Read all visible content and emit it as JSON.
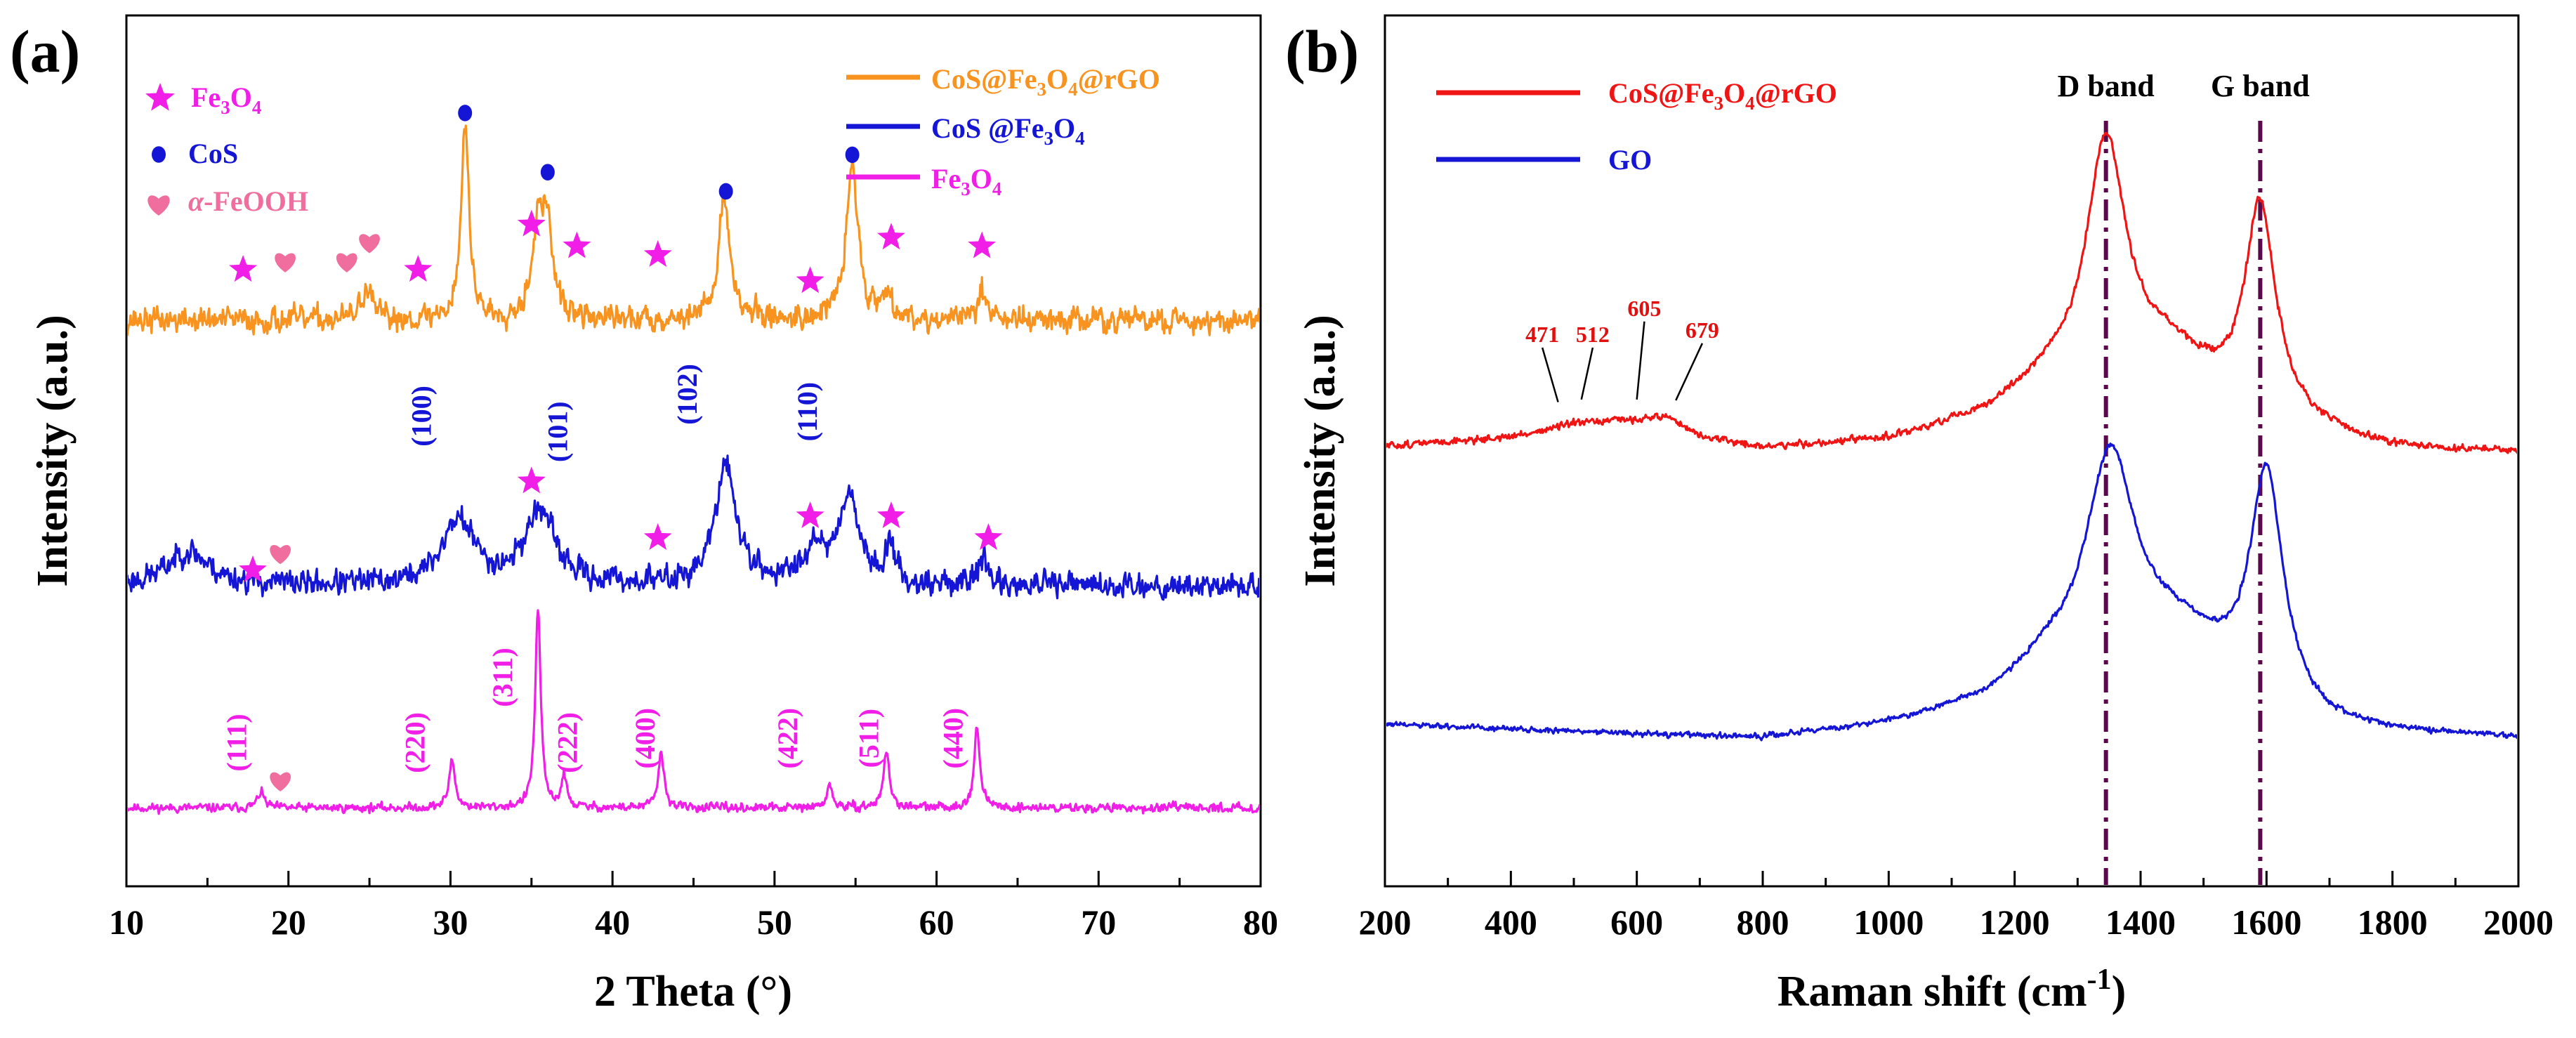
{
  "chart_data": [
    {
      "panel_label": "(a)",
      "type": "line",
      "xlabel": "2 Theta (°)",
      "ylabel": "Intensity (a.u.)",
      "xlim": [
        10,
        80
      ],
      "ylim": [
        0,
        100
      ],
      "xticks": [
        10,
        20,
        30,
        40,
        50,
        60,
        70,
        80
      ],
      "legend": [
        {
          "text": "CoS@Fe3O4@rGO",
          "color": "#F7931E"
        },
        {
          "text": "CoS @Fe3O4",
          "color": "#1515D6"
        },
        {
          "text": "Fe3O4",
          "color": "#F01EE6"
        }
      ],
      "marker_legend": [
        {
          "marker": "star",
          "color": "#F01EE6",
          "text": "Fe3O4"
        },
        {
          "marker": "dot",
          "color": "#1515D6",
          "text": "CoS"
        },
        {
          "marker": "heart",
          "color": "#F06E9E",
          "text": "α-FeOOH"
        }
      ],
      "series": [
        {
          "name": "Fe3O4",
          "color": "#F01EE6",
          "baseline": 9.0,
          "noise": 0.55,
          "seed": 11,
          "peaks": [
            {
              "x": 18.3,
              "h": 1.8,
              "w": 0.25
            },
            {
              "x": 30.1,
              "h": 5.5,
              "w": 0.22
            },
            {
              "x": 35.4,
              "h": 23.0,
              "w": 0.2
            },
            {
              "x": 37.0,
              "h": 3.6,
              "w": 0.2
            },
            {
              "x": 43.0,
              "h": 6.2,
              "w": 0.22
            },
            {
              "x": 53.4,
              "h": 2.5,
              "w": 0.22
            },
            {
              "x": 56.9,
              "h": 6.5,
              "w": 0.22
            },
            {
              "x": 62.5,
              "h": 9.0,
              "w": 0.22
            }
          ]
        },
        {
          "name": "CoS @Fe3O4",
          "color": "#1515D6",
          "baseline": 34.5,
          "noise": 1.6,
          "seed": 23,
          "peaks": [
            {
              "x": 13.8,
              "h": 4.0,
              "w": 1.5
            },
            {
              "x": 30.5,
              "h": 7.5,
              "w": 1.2
            },
            {
              "x": 35.5,
              "h": 8.5,
              "w": 1.1
            },
            {
              "x": 47.0,
              "h": 13.5,
              "w": 0.8
            },
            {
              "x": 54.6,
              "h": 10.5,
              "w": 0.7
            },
            {
              "x": 57.1,
              "h": 5.0,
              "w": 0.3
            },
            {
              "x": 62.8,
              "h": 3.5,
              "w": 0.3
            },
            {
              "x": 52.5,
              "h": 4.5,
              "w": 0.8
            }
          ]
        },
        {
          "name": "CoS@Fe3O4@rGO",
          "color": "#F7931E",
          "baseline": 65.0,
          "noise": 1.6,
          "seed": 37,
          "peaks": [
            {
              "x": 30.9,
              "h": 22.0,
              "w": 0.3
            },
            {
              "x": 35.4,
              "h": 10.5,
              "w": 0.45
            },
            {
              "x": 36.0,
              "h": 9.5,
              "w": 0.35
            },
            {
              "x": 46.9,
              "h": 13.5,
              "w": 0.45
            },
            {
              "x": 54.8,
              "h": 17.5,
              "w": 0.45
            },
            {
              "x": 57.0,
              "h": 3.5,
              "w": 0.3
            },
            {
              "x": 62.8,
              "h": 4.0,
              "w": 0.3
            },
            {
              "x": 24.8,
              "h": 3.5,
              "w": 0.4
            }
          ]
        }
      ],
      "markers": [
        {
          "type": "star",
          "x": 17.2,
          "y": 70.8
        },
        {
          "type": "heart",
          "x": 19.8,
          "y": 71.8
        },
        {
          "type": "heart",
          "x": 23.6,
          "y": 71.8
        },
        {
          "type": "heart",
          "x": 25.0,
          "y": 74.0
        },
        {
          "type": "star",
          "x": 28.0,
          "y": 70.8
        },
        {
          "type": "dot",
          "x": 30.9,
          "y": 88.8
        },
        {
          "type": "star",
          "x": 35.0,
          "y": 76.0
        },
        {
          "type": "dot",
          "x": 36.0,
          "y": 82.0
        },
        {
          "type": "star",
          "x": 37.8,
          "y": 73.5
        },
        {
          "type": "star",
          "x": 42.8,
          "y": 72.5
        },
        {
          "type": "dot",
          "x": 47.0,
          "y": 79.8
        },
        {
          "type": "star",
          "x": 52.2,
          "y": 69.5
        },
        {
          "type": "dot",
          "x": 54.8,
          "y": 84.0
        },
        {
          "type": "star",
          "x": 57.2,
          "y": 74.5
        },
        {
          "type": "star",
          "x": 62.8,
          "y": 73.5
        },
        {
          "type": "star",
          "x": 35.0,
          "y": 46.5
        },
        {
          "type": "star",
          "x": 42.8,
          "y": 40.0
        },
        {
          "type": "star",
          "x": 52.2,
          "y": 42.5
        },
        {
          "type": "star",
          "x": 57.2,
          "y": 42.5
        },
        {
          "type": "star",
          "x": 63.2,
          "y": 40.0
        },
        {
          "type": "star",
          "x": 17.8,
          "y": 36.3
        },
        {
          "type": "heart",
          "x": 19.5,
          "y": 38.3
        },
        {
          "type": "heart",
          "x": 19.5,
          "y": 12.2
        }
      ],
      "hkl_labels": [
        {
          "text": "(100)",
          "x": 28.8,
          "y": 54.0,
          "color": "#1515D6"
        },
        {
          "text": "(101)",
          "x": 37.2,
          "y": 52.2,
          "color": "#1515D6"
        },
        {
          "text": "(102)",
          "x": 45.2,
          "y": 56.5,
          "color": "#1515D6"
        },
        {
          "text": "(110)",
          "x": 52.6,
          "y": 54.5,
          "color": "#1515D6"
        },
        {
          "text": "(111)",
          "x": 17.4,
          "y": 16.5,
          "color": "#F01EE6"
        },
        {
          "text": "(220)",
          "x": 28.4,
          "y": 16.5,
          "color": "#F01EE6"
        },
        {
          "text": "(311)",
          "x": 33.8,
          "y": 24.0,
          "color": "#F01EE6"
        },
        {
          "text": "(222)",
          "x": 37.8,
          "y": 16.5,
          "color": "#F01EE6"
        },
        {
          "text": "(400)",
          "x": 42.6,
          "y": 17.0,
          "color": "#F01EE6"
        },
        {
          "text": "(422)",
          "x": 51.4,
          "y": 17.0,
          "color": "#F01EE6"
        },
        {
          "text": "(511)",
          "x": 56.4,
          "y": 17.0,
          "color": "#F01EE6"
        },
        {
          "text": "(440)",
          "x": 61.6,
          "y": 17.0,
          "color": "#F01EE6"
        }
      ]
    },
    {
      "panel_label": "(b)",
      "type": "line",
      "xlabel": "Raman shift (cm-1)",
      "ylabel": "Intensity (a.u.)",
      "xlim": [
        200,
        2000
      ],
      "ylim": [
        0,
        100
      ],
      "xticks": [
        200,
        400,
        600,
        800,
        1000,
        1200,
        1400,
        1600,
        1800,
        2000
      ],
      "legend": [
        {
          "text": "CoS@Fe3O4@rGO",
          "color": "#F01414"
        },
        {
          "text": "GO",
          "color": "#1515D6"
        }
      ],
      "band_lines": [
        {
          "label": "D band",
          "x": 1345
        },
        {
          "label": "G band",
          "x": 1590
        }
      ],
      "series": [
        {
          "name": "CoS@Fe3O4@rGO",
          "color": "#F01414",
          "baseline": 50.0,
          "noise": 0.45,
          "seed": 51,
          "base_points": [
            [
              200,
              50.5
            ],
            [
              400,
              51.5
            ],
            [
              500,
              53.0
            ],
            [
              650,
              53.8
            ],
            [
              700,
              51.5
            ],
            [
              800,
              50.2
            ],
            [
              1000,
              51.0
            ],
            [
              1150,
              53.5
            ],
            [
              1250,
              57.0
            ],
            [
              1800,
              50.0
            ],
            [
              2000,
              49.6
            ]
          ],
          "peaks": [
            {
              "x": 1345,
              "h": 27.5,
              "w": 38
            },
            {
              "x": 1590,
              "h": 24.0,
              "w": 30
            },
            {
              "x": 1440,
              "h": 6.0,
              "w": 90
            }
          ]
        },
        {
          "name": "GO",
          "color": "#1515D6",
          "baseline": 18.0,
          "noise": 0.35,
          "seed": 61,
          "base_points": [
            [
              200,
              18.5
            ],
            [
              800,
              16.8
            ],
            [
              1000,
              18.3
            ],
            [
              1150,
              20.5
            ],
            [
              1250,
              24.0
            ],
            [
              1700,
              17.2
            ],
            [
              2000,
              16.8
            ]
          ],
          "peaks": [
            {
              "x": 1352,
              "h": 24.5,
              "w": 48
            },
            {
              "x": 1600,
              "h": 26.5,
              "w": 32
            },
            {
              "x": 1460,
              "h": 7.0,
              "w": 100
            }
          ]
        }
      ],
      "raman_labels": [
        {
          "text": "471",
          "x": 450,
          "y": 62.5,
          "tick_to": [
            475,
            55.6
          ]
        },
        {
          "text": "512",
          "x": 530,
          "y": 62.5,
          "tick_to": [
            512,
            55.9
          ]
        },
        {
          "text": "605",
          "x": 612,
          "y": 65.5,
          "tick_to": [
            600,
            55.9
          ]
        },
        {
          "text": "679",
          "x": 704,
          "y": 63.0,
          "tick_to": [
            662,
            55.8
          ]
        }
      ]
    }
  ]
}
